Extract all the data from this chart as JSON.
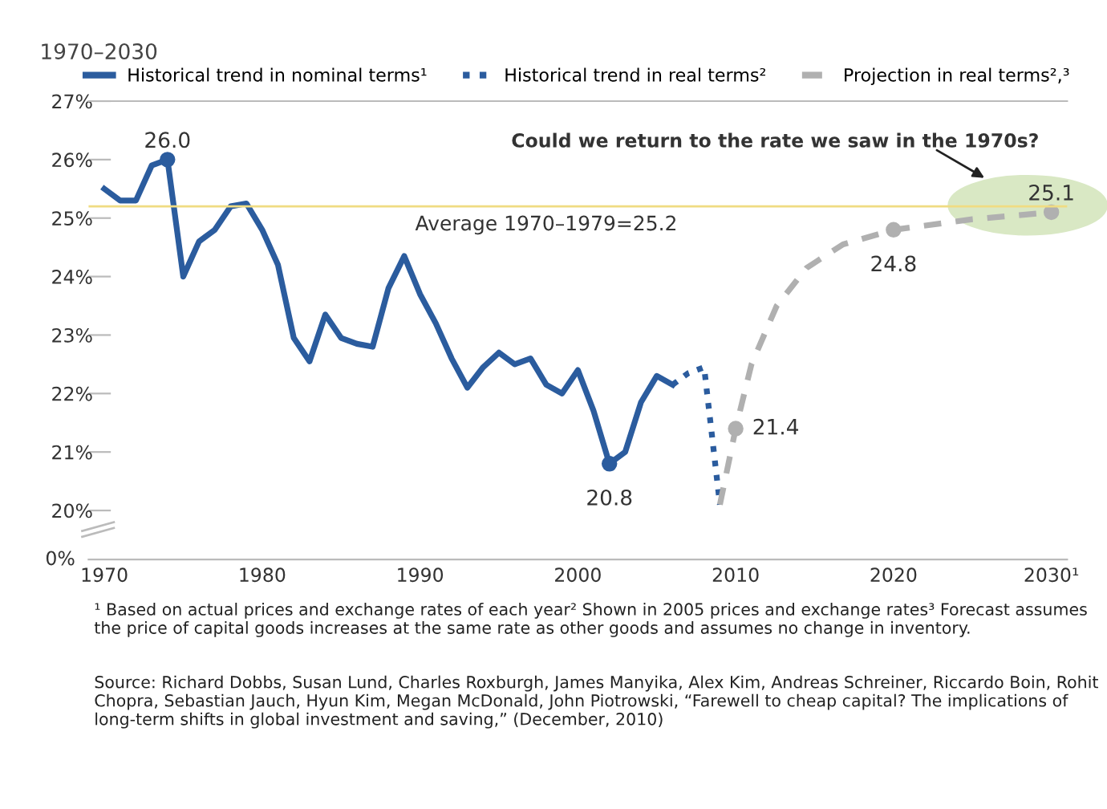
{
  "chart_data": {
    "type": "line",
    "title": "1970–2030",
    "series": [
      {
        "name": "Historical trend in nominal terms¹",
        "color": "#2b5c9e",
        "line_style": "solid",
        "x": [
          1970,
          1971,
          1972,
          1973,
          1974,
          1975,
          1976,
          1977,
          1978,
          1979,
          1980,
          1981,
          1982,
          1983,
          1984,
          1985,
          1986,
          1987,
          1988,
          1989,
          1990,
          1991,
          1992,
          1993,
          1994,
          1995,
          1996,
          1997,
          1998,
          1999,
          2000,
          2001,
          2002,
          2003,
          2004,
          2005,
          2006
        ],
        "values": [
          25.5,
          25.3,
          25.3,
          25.9,
          26.0,
          24.0,
          24.6,
          24.8,
          25.2,
          25.25,
          24.8,
          24.2,
          22.95,
          22.55,
          23.35,
          22.95,
          22.85,
          22.8,
          23.8,
          24.35,
          23.7,
          23.2,
          22.6,
          22.1,
          22.45,
          22.7,
          22.5,
          22.6,
          22.15,
          22.0,
          22.4,
          21.7,
          20.8,
          21.0,
          21.85,
          22.3,
          22.15
        ],
        "value_labels": [
          null,
          null,
          null,
          null,
          "26.0",
          null,
          null,
          null,
          null,
          null,
          null,
          null,
          null,
          null,
          null,
          null,
          null,
          null,
          null,
          null,
          null,
          null,
          null,
          null,
          null,
          null,
          null,
          null,
          null,
          null,
          null,
          null,
          "20.8",
          null,
          null,
          null,
          null
        ]
      },
      {
        "name": "Historical trend in real terms²",
        "color": "#2b5c9e",
        "line_style": "dotted",
        "x": [
          2006,
          2007,
          2008,
          2009
        ],
        "values": [
          22.15,
          22.35,
          22.45,
          20.1
        ]
      },
      {
        "name": "Projection in real terms²,³",
        "color": "#b0b0b0",
        "line_style": "dashed",
        "x": [
          2009,
          2010,
          2011,
          2012.6,
          2014.5,
          2016.8,
          2020,
          2025,
          2030
        ],
        "values": [
          20.1,
          21.4,
          22.5,
          23.5,
          24.15,
          24.55,
          24.8,
          24.98,
          25.1
        ],
        "value_labels": [
          null,
          "21.4",
          null,
          null,
          null,
          null,
          "24.8",
          null,
          "25.1"
        ]
      }
    ],
    "xlim": [
      1969,
      2031
    ],
    "xticks": [
      1970,
      1980,
      1990,
      2000,
      2010,
      2020,
      {
        "value": 2030,
        "label": "2030¹"
      }
    ],
    "ylim": [
      20,
      27
    ],
    "yticks": [
      {
        "value": 20,
        "label": "20%"
      },
      {
        "value": 21,
        "label": "21%"
      },
      {
        "value": 22,
        "label": "22%"
      },
      {
        "value": 23,
        "label": "23%"
      },
      {
        "value": 24,
        "label": "24%"
      },
      {
        "value": 25,
        "label": "25%"
      },
      {
        "value": 26,
        "label": "26%"
      },
      {
        "value": 27,
        "label": "27%"
      }
    ],
    "ref_lines": [
      {
        "axis": "y",
        "value": 25.2,
        "label": "Average 1970–1979=25.2",
        "color": "#f0dc82"
      }
    ],
    "legend": "top",
    "grid": false,
    "annotations": [
      "Could we return to the rate we saw in the 1970s?",
      "0%",
      "¹ Based on actual prices and exchange rates of each year² Shown in 2005 prices and exchange rates³ Forecast assumes the price of capital goods increases at the same rate as other goods and assumes no change in inventory.",
      "Source: Richard Dobbs, Susan Lund, Charles Roxburgh, James Manyika, Alex Kim, Andreas Schreiner, Riccardo Boin, Rohit Chopra, Sebastian Jauch, Hyun Kim, Megan McDonald, John Piotrowski, “Farewell to cheap capital? The implications of long-term shifts in global investment and saving,” (December, 2010)"
    ]
  }
}
